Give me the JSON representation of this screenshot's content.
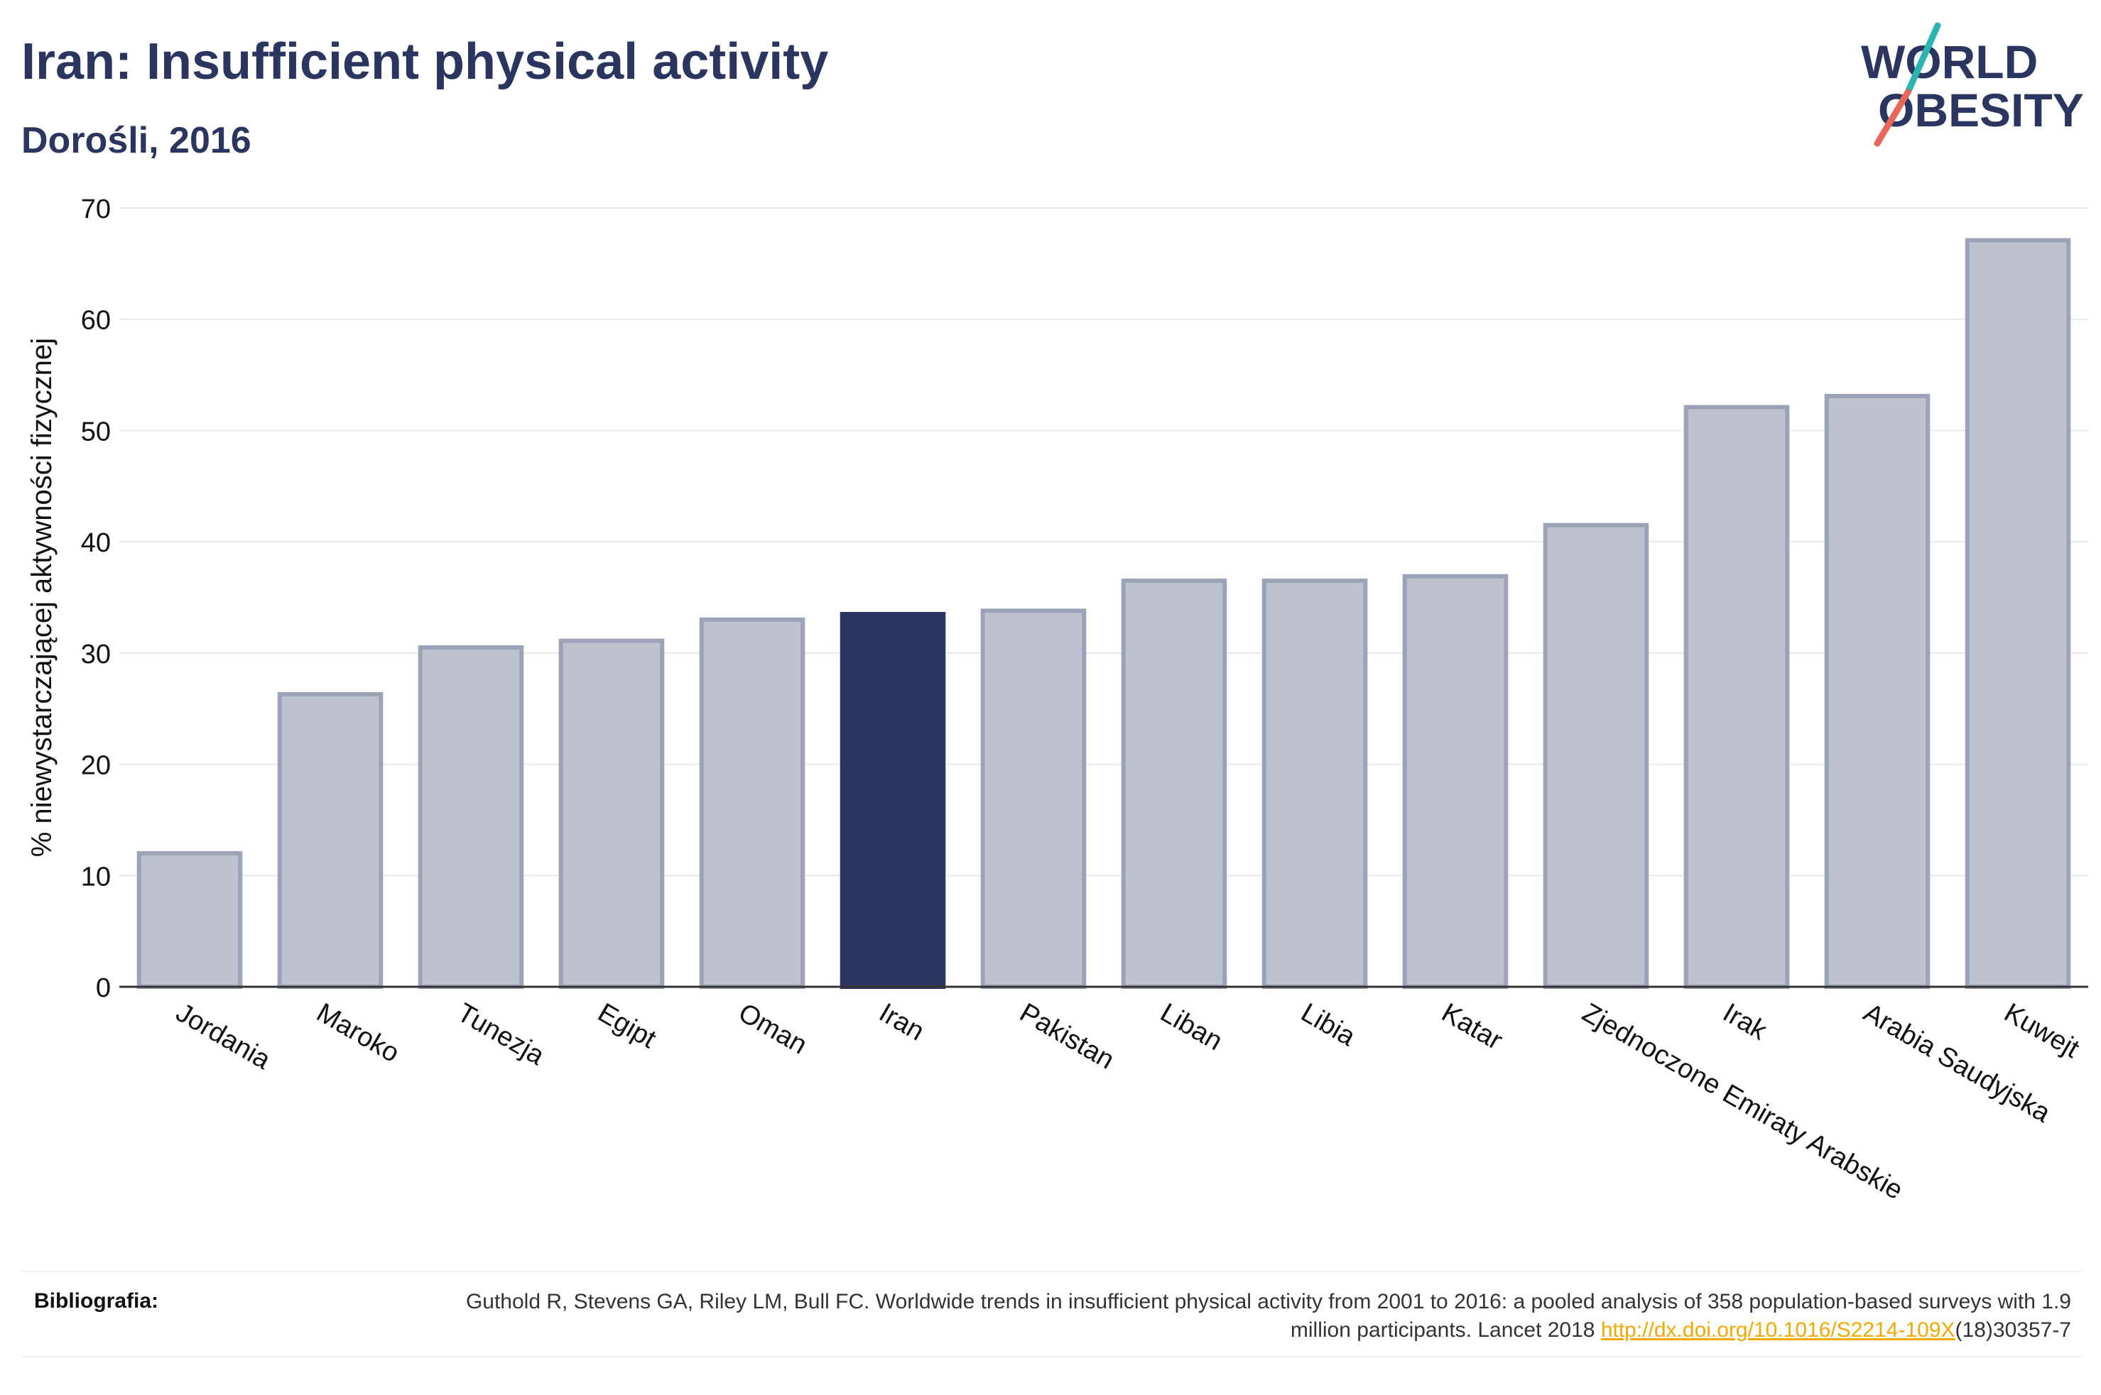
{
  "header": {
    "title": "Iran: Insufficient physical activity",
    "subtitle": "Dorośli, 2016"
  },
  "logo": {
    "line1": "WORLD",
    "line2": "OBESITY",
    "accent_colors": [
      "#2bb5b0",
      "#e8675a"
    ]
  },
  "chart_data": {
    "type": "bar",
    "title": "Iran: Insufficient physical activity",
    "subtitle": "Dorośli, 2016",
    "ylabel": "% niewystarczającej aktywności fizycznej",
    "xlabel": "",
    "ylim": [
      0,
      70
    ],
    "yticks": [
      0,
      10,
      20,
      30,
      40,
      50,
      60,
      70
    ],
    "grid": true,
    "categories": [
      "Jordania",
      "Maroko",
      "Tunezja",
      "Egipt",
      "Oman",
      "Iran",
      "Pakistan",
      "Liban",
      "Libia",
      "Katar",
      "Zjednoczone Emiraty Arabskie",
      "Irak",
      "Arabia Saudyjska",
      "Kuwejt"
    ],
    "values": [
      12.0,
      26.3,
      30.5,
      31.1,
      33.0,
      33.5,
      33.8,
      36.5,
      36.5,
      36.9,
      41.5,
      52.1,
      53.1,
      67.1
    ],
    "highlight": "Iran",
    "colors": {
      "bar": "#bec2cf",
      "bar_border": "#9ca2b8",
      "highlight": "#2b3660",
      "axis": "#333333",
      "grid": "#e8e9ed"
    }
  },
  "footer": {
    "label": "Bibliografia:",
    "citation_part1": "Guthold R, Stevens GA, Riley LM, Bull FC. Worldwide trends in insufficient physical activity from 2001 to 2016: a pooled analysis of 358 population-based surveys with 1.9 million participants. Lancet 2018 ",
    "doi_link": "http://dx.doi.org/10.1016/S2214-109X",
    "citation_part2": "(18)30357-7"
  }
}
